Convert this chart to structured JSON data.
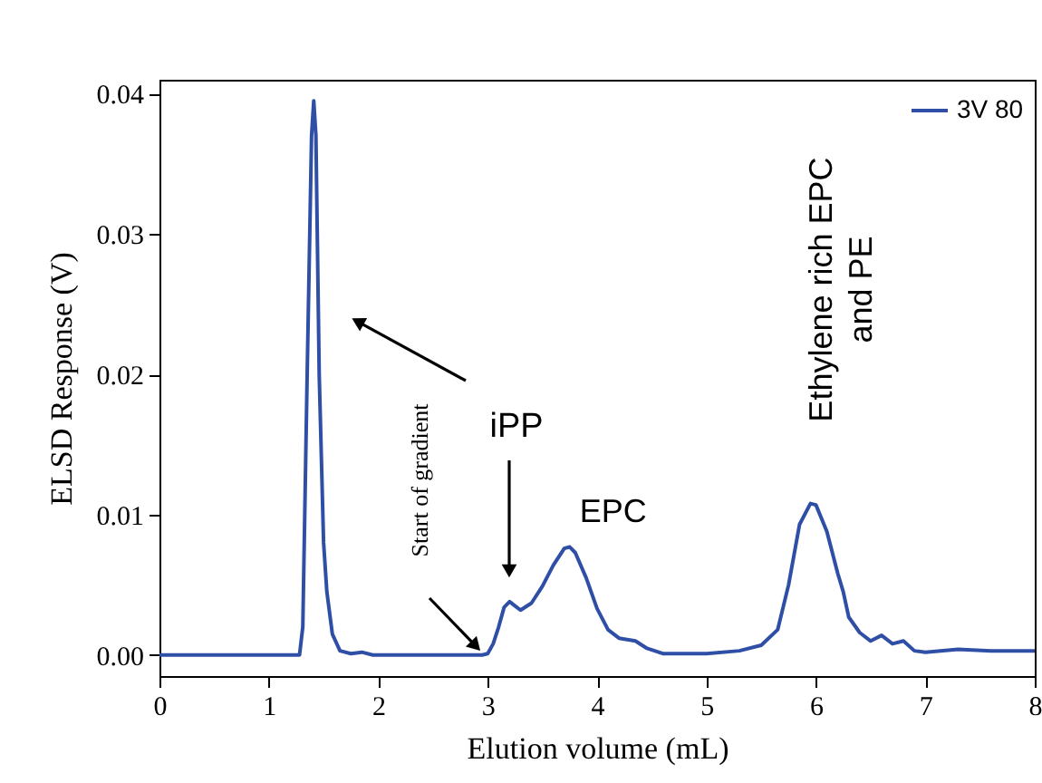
{
  "chart_data": {
    "type": "line",
    "xlabel": "Elution volume (mL)",
    "ylabel": "ELSD Response (V)",
    "x": [
      0,
      1.2,
      1.28,
      1.31,
      1.35,
      1.39,
      1.41,
      1.43,
      1.46,
      1.5,
      1.53,
      1.58,
      1.65,
      1.75,
      1.85,
      1.95,
      2.5,
      2.95,
      3.0,
      3.05,
      3.1,
      3.15,
      3.2,
      3.25,
      3.3,
      3.4,
      3.5,
      3.6,
      3.7,
      3.75,
      3.8,
      3.9,
      4.0,
      4.1,
      4.2,
      4.35,
      4.45,
      4.6,
      5.0,
      5.3,
      5.5,
      5.65,
      5.75,
      5.85,
      5.95,
      6.0,
      6.1,
      6.2,
      6.25,
      6.3,
      6.4,
      6.5,
      6.6,
      6.7,
      6.8,
      6.9,
      7.0,
      7.3,
      7.6,
      8
    ],
    "series": [
      {
        "name": "3V 80",
        "color": "#2f4fa6",
        "values": [
          0,
          0,
          0,
          0.002,
          0.02,
          0.037,
          0.0395,
          0.037,
          0.02,
          0.008,
          0.0045,
          0.0015,
          0.0003,
          0.0001,
          0.0002,
          0,
          0,
          0,
          0.0001,
          0.0008,
          0.002,
          0.0034,
          0.0038,
          0.0035,
          0.0032,
          0.0037,
          0.0049,
          0.0064,
          0.0076,
          0.0077,
          0.0073,
          0.0055,
          0.0033,
          0.0018,
          0.0012,
          0.001,
          0.0005,
          0.0001,
          0.0001,
          0.0003,
          0.0007,
          0.0018,
          0.005,
          0.0093,
          0.0108,
          0.0107,
          0.0088,
          0.0058,
          0.0045,
          0.0027,
          0.0016,
          0.001,
          0.0014,
          0.0008,
          0.001,
          0.0003,
          0.0002,
          0.0004,
          0.0003,
          0.0003
        ]
      }
    ],
    "xlim": [
      0,
      8
    ],
    "xticks": [
      0,
      1,
      2,
      3,
      4,
      5,
      6,
      7,
      8
    ],
    "ylim": [
      -0.0015,
      0.041
    ],
    "yticks": [
      {
        "value": 0,
        "label": "0.00"
      },
      {
        "value": 0.01,
        "label": "0.01"
      },
      {
        "value": 0.02,
        "label": "0.02"
      },
      {
        "value": 0.03,
        "label": "0.03"
      },
      {
        "value": 0.04,
        "label": "0.04"
      }
    ],
    "annotations": [
      "iPP",
      {
        "text": "EPC",
        "x": 3.75,
        "y": 0.0077
      },
      "Start of gradient",
      {
        "text": "Ethylene rich EPC and PE",
        "x": 5.95,
        "y": 0.0108
      }
    ],
    "legend": "top right",
    "grid": false,
    "line_style": "solid",
    "marker": "none"
  }
}
